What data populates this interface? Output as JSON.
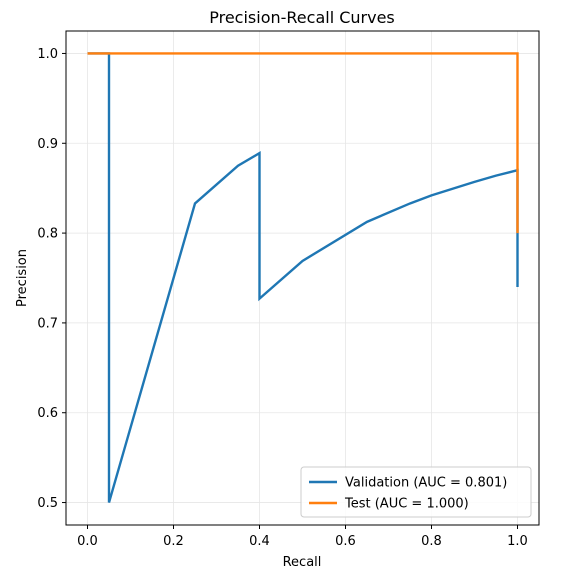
{
  "chart_data": {
    "type": "line",
    "title": "Precision-Recall Curves",
    "xlabel": "Recall",
    "ylabel": "Precision",
    "xlim": [
      -0.05,
      1.05
    ],
    "ylim": [
      0.475,
      1.025
    ],
    "xticks": [
      0.0,
      0.2,
      0.4,
      0.6,
      0.8,
      1.0
    ],
    "xtick_labels": [
      "0.0",
      "0.2",
      "0.4",
      "0.6",
      "0.8",
      "1.0"
    ],
    "yticks": [
      0.5,
      0.6,
      0.7,
      0.8,
      0.9,
      1.0
    ],
    "ytick_labels": [
      "0.5",
      "0.6",
      "0.7",
      "0.8",
      "0.9",
      "1.0"
    ],
    "grid": true,
    "legend_position": "lower-right",
    "series": [
      {
        "name": "Validation (AUC = 0.801)",
        "color": "#1f77b4",
        "x": [
          0.0,
          0.05,
          0.05,
          0.25,
          0.35,
          0.4,
          0.4,
          0.5,
          0.65,
          0.75,
          0.8,
          0.9,
          0.95,
          1.0,
          1.0
        ],
        "y": [
          1.0,
          1.0,
          0.5,
          0.833,
          0.875,
          0.889,
          0.727,
          0.769,
          0.8125,
          0.833,
          0.842,
          0.857,
          0.864,
          0.87,
          0.74
        ]
      },
      {
        "name": "Test (AUC = 1.000)",
        "color": "#ff7f0e",
        "x": [
          0.0,
          1.0,
          1.0
        ],
        "y": [
          1.0,
          1.0,
          0.8
        ]
      }
    ]
  }
}
